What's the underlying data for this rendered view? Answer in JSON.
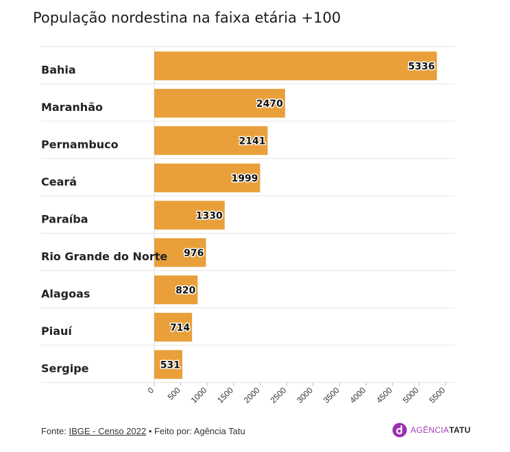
{
  "title": "População nordestina na faixa etária +100",
  "footer": {
    "source_prefix": "Fonte: ",
    "source_link": "IBGE - Censo 2022",
    "separator": " • Feito por: Agência Tatu"
  },
  "logo": {
    "text_a": "AGÊNCIA",
    "text_b": "TATU",
    "mark_color": "#9b2fb3"
  },
  "colors": {
    "bar": "#e9a03a",
    "grid": "#e6e6e6",
    "axis": "#dddddd"
  },
  "chart_data": {
    "type": "bar",
    "orientation": "horizontal",
    "title": "População nordestina na faixa etária +100",
    "xlabel": "",
    "ylabel": "",
    "categories": [
      "Bahia",
      "Maranhão",
      "Pernambuco",
      "Ceará",
      "Paraíba",
      "Rio Grande do Norte",
      "Alagoas",
      "Piauí",
      "Sergipe"
    ],
    "values": [
      5336,
      2470,
      2141,
      1999,
      1330,
      976,
      820,
      714,
      531
    ],
    "xlim": [
      0,
      5500
    ],
    "ticks": [
      0,
      500,
      1000,
      1500,
      2000,
      2500,
      3000,
      3500,
      4000,
      4500,
      5000,
      5500
    ],
    "grid": true,
    "data_labels": true
  }
}
